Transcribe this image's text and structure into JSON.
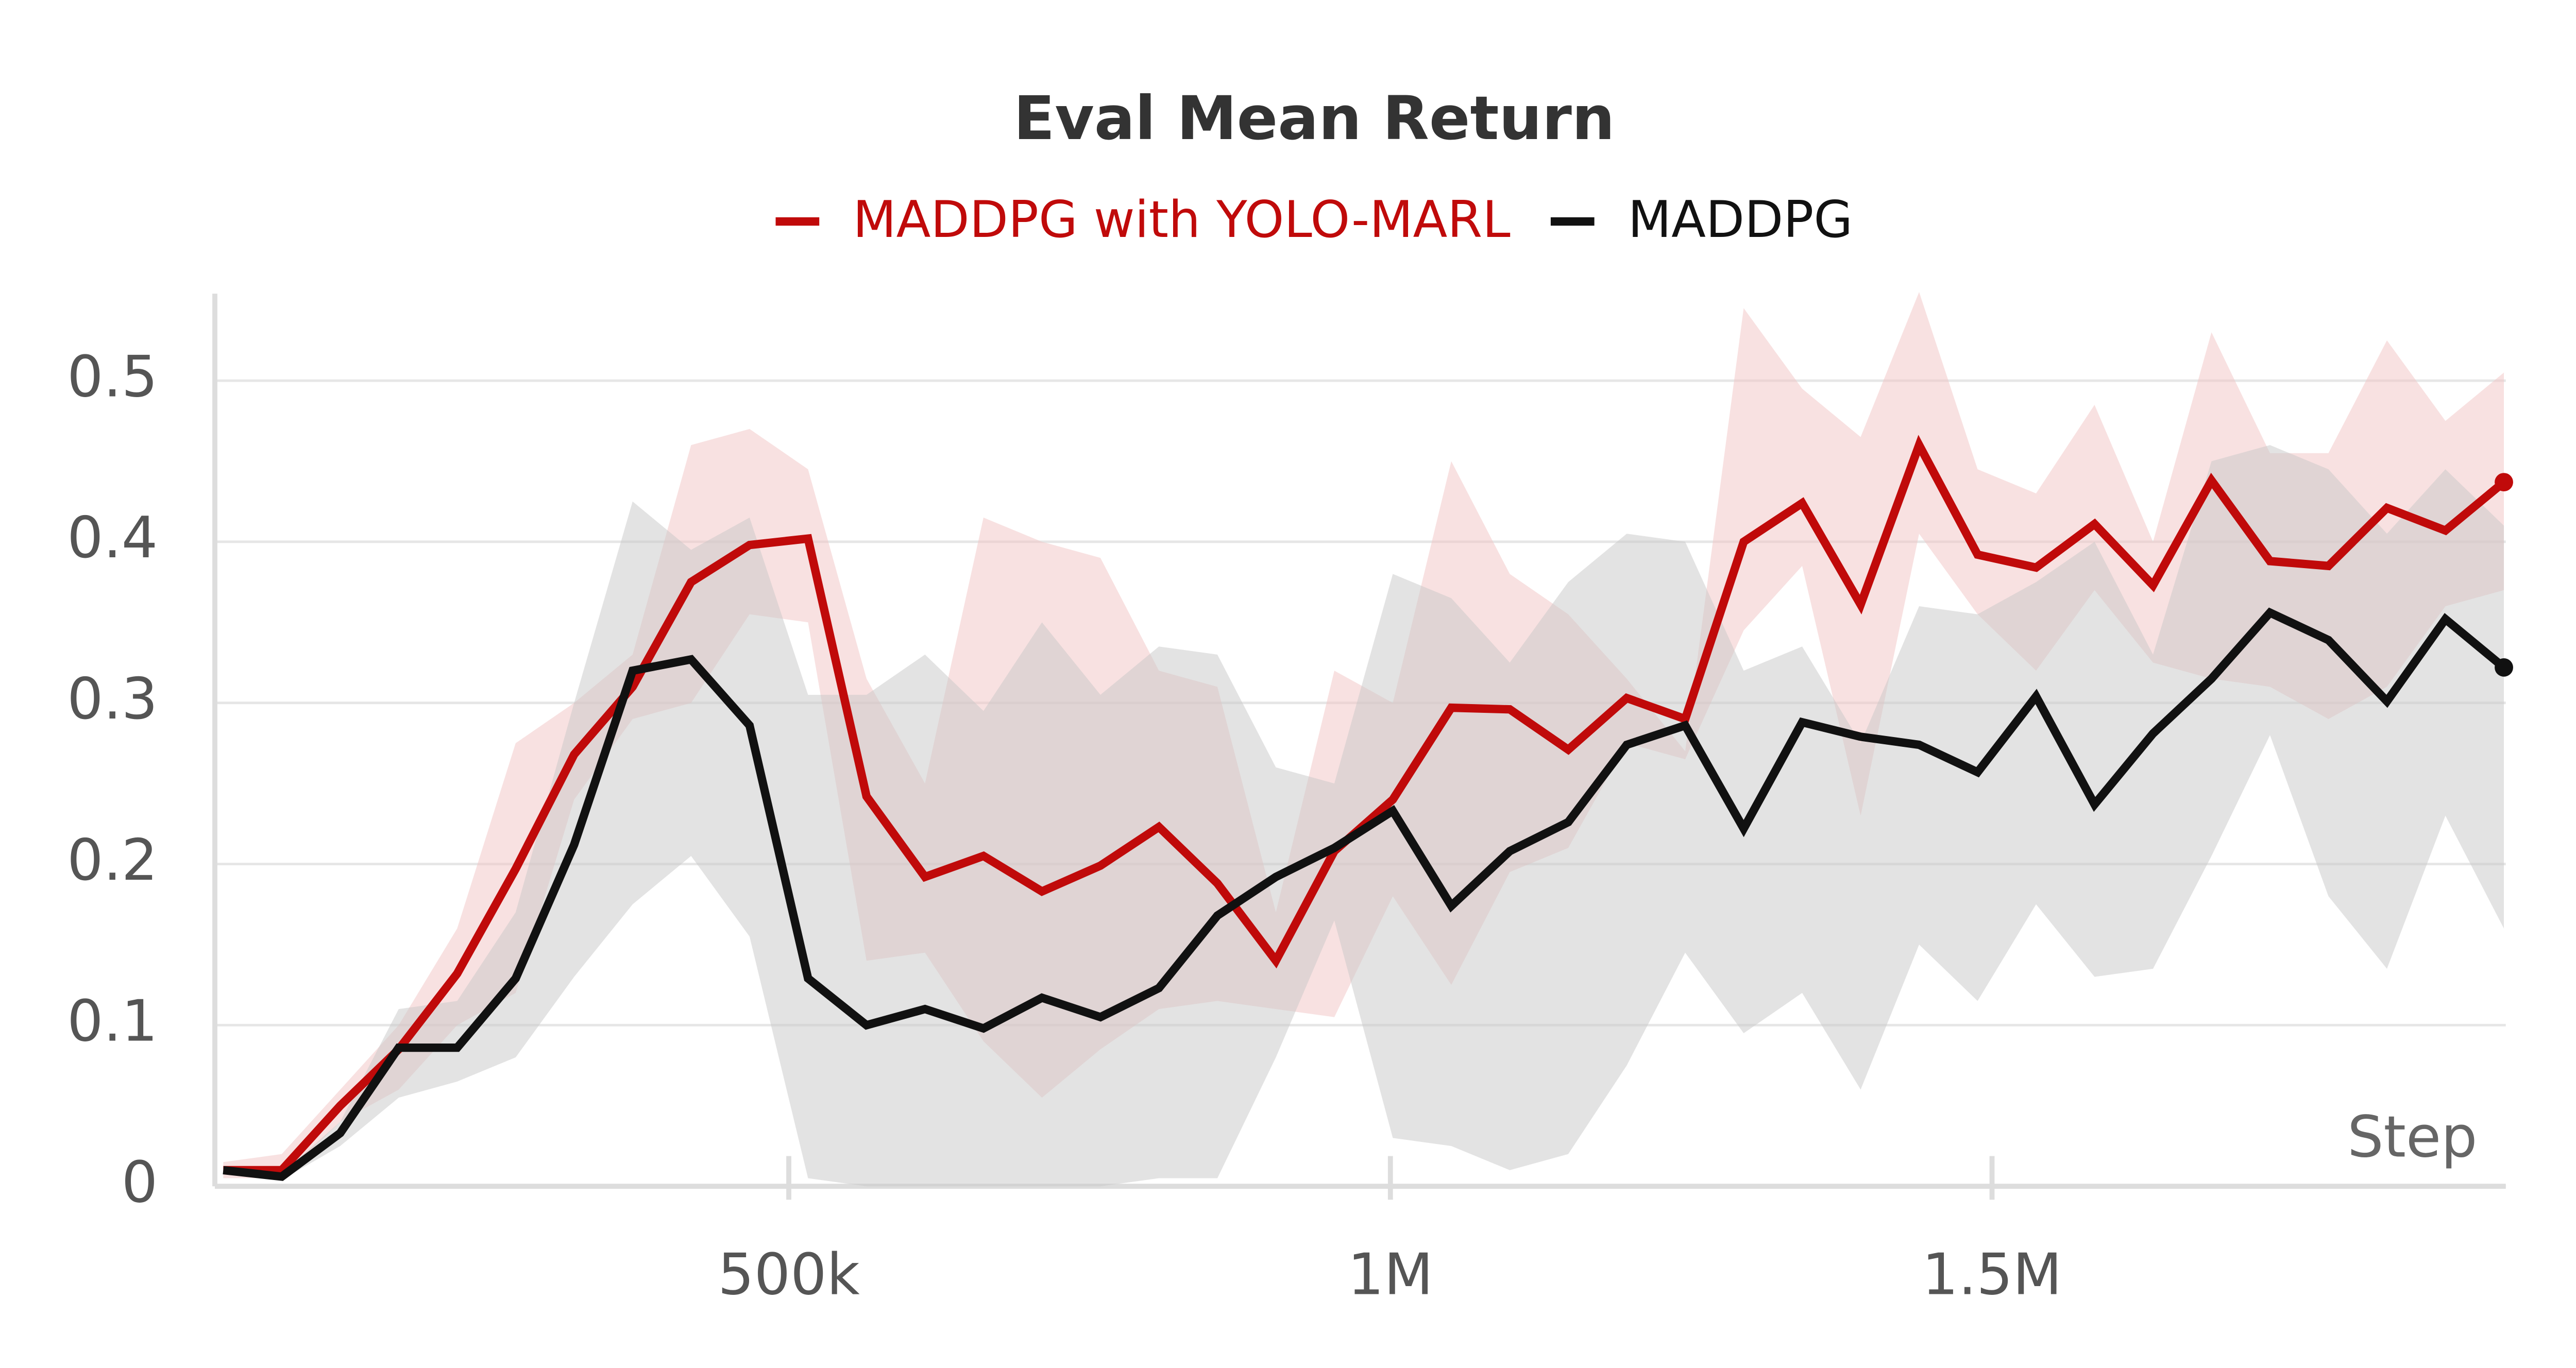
{
  "chart_data": {
    "type": "line",
    "title": "Eval Mean Return",
    "x_label": "Step",
    "xlim": [
      23000,
      1927000
    ],
    "ylim": [
      0,
      0.554
    ],
    "xticks": [
      {
        "value": 500000,
        "label": "500k"
      },
      {
        "value": 1000000,
        "label": "1M"
      },
      {
        "value": 1500000,
        "label": "1.5M"
      }
    ],
    "yticks": [
      0,
      0.1,
      0.2,
      0.3,
      0.4,
      0.5
    ],
    "grid": true,
    "legend": "top",
    "x": [
      30000,
      78600,
      127200,
      175800,
      224400,
      273000,
      321600,
      370200,
      418800,
      467400,
      516000,
      564600,
      613200,
      661800,
      710400,
      759000,
      807600,
      856200,
      904800,
      953400,
      1002000,
      1050600,
      1099200,
      1147800,
      1196400,
      1245000,
      1293600,
      1342200,
      1390800,
      1439400,
      1488000,
      1536600,
      1585200,
      1633800,
      1682400,
      1731000,
      1779600,
      1828200,
      1876800,
      1925400
    ],
    "series": [
      {
        "name": "MADDPG with YOLO-MARL",
        "color": "#c00a0a",
        "band_color": "#f2c4c4",
        "values": [
          0.01,
          0.01,
          0.05,
          0.085,
          0.132,
          0.197,
          0.268,
          0.31,
          0.375,
          0.398,
          0.402,
          0.242,
          0.192,
          0.205,
          0.183,
          0.199,
          0.223,
          0.188,
          0.14,
          0.208,
          0.24,
          0.297,
          0.296,
          0.271,
          0.303,
          0.29,
          0.4,
          0.424,
          0.361,
          0.46,
          0.392,
          0.384,
          0.411,
          0.373,
          0.438,
          0.388,
          0.385,
          0.421,
          0.407,
          0.437
        ],
        "upper": [
          0.015,
          0.02,
          0.06,
          0.1,
          0.16,
          0.275,
          0.3,
          0.33,
          0.46,
          0.47,
          0.445,
          0.315,
          0.25,
          0.415,
          0.4,
          0.39,
          0.32,
          0.31,
          0.17,
          0.32,
          0.3,
          0.45,
          0.38,
          0.355,
          0.315,
          0.27,
          0.545,
          0.495,
          0.465,
          0.555,
          0.445,
          0.43,
          0.485,
          0.4,
          0.53,
          0.455,
          0.455,
          0.525,
          0.475,
          0.505
        ],
        "lower": [
          0.005,
          0.005,
          0.04,
          0.06,
          0.1,
          0.12,
          0.24,
          0.29,
          0.3,
          0.355,
          0.35,
          0.14,
          0.145,
          0.09,
          0.055,
          0.085,
          0.11,
          0.115,
          0.11,
          0.105,
          0.18,
          0.125,
          0.195,
          0.21,
          0.275,
          0.265,
          0.345,
          0.385,
          0.23,
          0.405,
          0.355,
          0.32,
          0.37,
          0.325,
          0.315,
          0.31,
          0.29,
          0.31,
          0.36,
          0.37
        ]
      },
      {
        "name": "MADDPG",
        "color": "#111111",
        "band_color": "#c8c8c8",
        "values": [
          0.01,
          0.006,
          0.033,
          0.086,
          0.086,
          0.129,
          0.212,
          0.32,
          0.327,
          0.286,
          0.129,
          0.1,
          0.11,
          0.098,
          0.117,
          0.105,
          0.123,
          0.168,
          0.192,
          0.21,
          0.233,
          0.174,
          0.208,
          0.226,
          0.274,
          0.286,
          0.222,
          0.288,
          0.279,
          0.274,
          0.257,
          0.304,
          0.237,
          0.281,
          0.315,
          0.356,
          0.339,
          0.301,
          0.352,
          0.322
        ],
        "upper": [
          0.012,
          0.008,
          0.04,
          0.11,
          0.115,
          0.17,
          0.3,
          0.425,
          0.395,
          0.415,
          0.305,
          0.305,
          0.33,
          0.295,
          0.35,
          0.305,
          0.335,
          0.33,
          0.26,
          0.25,
          0.38,
          0.365,
          0.325,
          0.375,
          0.405,
          0.4,
          0.32,
          0.335,
          0.275,
          0.36,
          0.355,
          0.375,
          0.4,
          0.33,
          0.45,
          0.46,
          0.445,
          0.405,
          0.445,
          0.41
        ],
        "lower": [
          0.008,
          0.004,
          0.025,
          0.055,
          0.065,
          0.08,
          0.13,
          0.175,
          0.205,
          0.155,
          0.005,
          0,
          0,
          0,
          0,
          0,
          0.005,
          0.005,
          0.08,
          0.165,
          0.03,
          0.025,
          0.01,
          0.02,
          0.075,
          0.145,
          0.095,
          0.12,
          0.06,
          0.15,
          0.115,
          0.175,
          0.13,
          0.135,
          0.205,
          0.28,
          0.18,
          0.135,
          0.23,
          0.16
        ]
      }
    ]
  }
}
